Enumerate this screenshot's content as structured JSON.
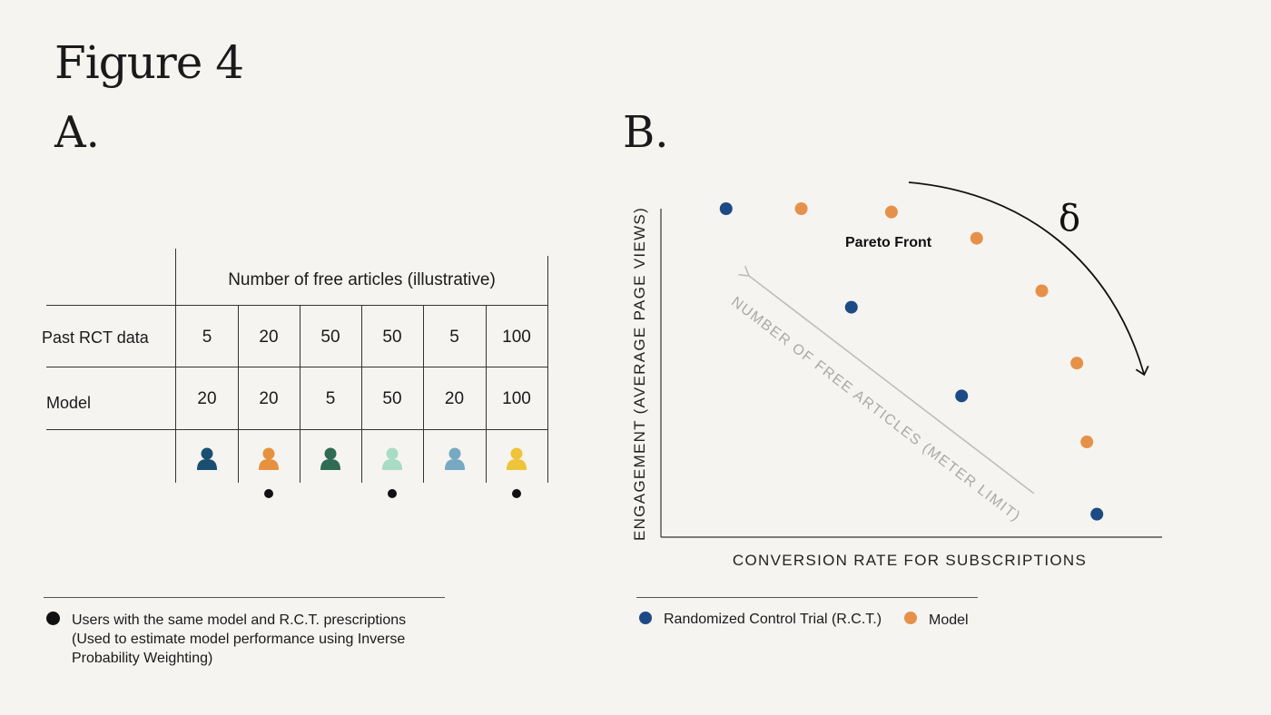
{
  "figure_title": "Figure 4",
  "panel_a_label": "A.",
  "panel_b_label": "B.",
  "table": {
    "header": "Number of free articles (illustrative)",
    "rows": [
      {
        "label": "Past RCT data",
        "values": [
          "5",
          "20",
          "50",
          "50",
          "5",
          "100"
        ]
      },
      {
        "label": "Model",
        "values": [
          "20",
          "20",
          "5",
          "50",
          "20",
          "100"
        ]
      }
    ],
    "user_icon_colors": [
      "#1b4f72",
      "#e6913f",
      "#2f6b55",
      "#a8dcc5",
      "#78a9c2",
      "#eec43a"
    ],
    "match_marks": [
      false,
      true,
      false,
      true,
      false,
      true
    ]
  },
  "legend_a": {
    "text": "Users with the same model and R.C.T. prescriptions (Used to estimate model performance using Inverse Probability Weighting)"
  },
  "legend_b": {
    "rct": "Randomized Control Trial (R.C.T.)",
    "model": "Model"
  },
  "chart_data": {
    "type": "scatter",
    "xlabel": "CONVERSION RATE FOR SUBSCRIPTIONS",
    "ylabel": "ENGAGEMENT (AVERAGE PAGE VIEWS)",
    "xlim": [
      0,
      100
    ],
    "ylim": [
      0,
      100
    ],
    "grid": false,
    "legend_position": "bottom",
    "series": [
      {
        "name": "Randomized Control Trial (R.C.T.)",
        "color": "#1c4a84",
        "points": [
          [
            13,
            100
          ],
          [
            38,
            70
          ],
          [
            60,
            43
          ],
          [
            87,
            7
          ]
        ]
      },
      {
        "name": "Model",
        "color": "#e6914a",
        "points": [
          [
            28,
            100
          ],
          [
            46,
            99
          ],
          [
            63,
            91
          ],
          [
            76,
            75
          ],
          [
            83,
            53
          ],
          [
            85,
            29
          ]
        ]
      }
    ],
    "annotations": {
      "pareto_label": "Pareto Front",
      "delta_symbol": "δ",
      "meter_arrow_label": "NUMBER OF FREE ARTICLES (METER LIMIT)"
    }
  },
  "colors": {
    "background": "#f6f4f1",
    "arrow_gray": "#bdbdbd",
    "meter_text": "#a9a9a9"
  }
}
